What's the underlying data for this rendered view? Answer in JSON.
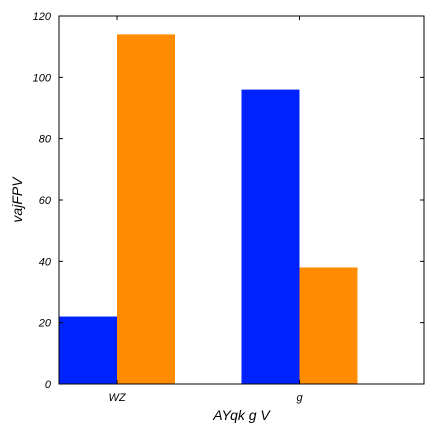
{
  "chart_data": {
    "type": "bar",
    "categories": [
      "WZ",
      "g"
    ],
    "series": [
      {
        "values": [
          22,
          96
        ],
        "color": "#0022ff"
      },
      {
        "values": [
          114,
          38
        ],
        "color": "#ff8c00"
      }
    ],
    "xlabel": "AYqk g V",
    "ylabel": "vajFPV",
    "ylim": [
      0,
      120
    ],
    "yticks": [
      0,
      20,
      40,
      60,
      80,
      100,
      120
    ],
    "grid": false,
    "legend": "none"
  }
}
